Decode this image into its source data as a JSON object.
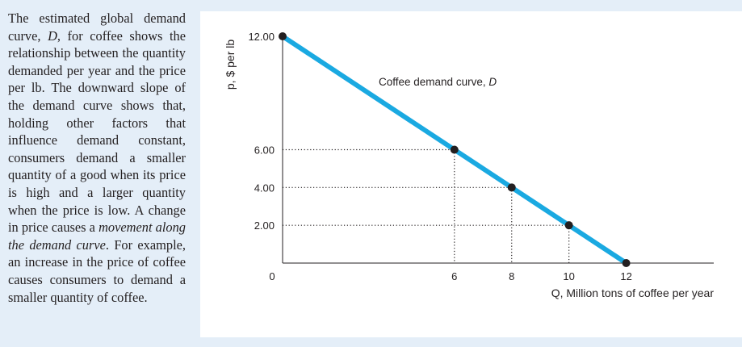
{
  "caption": {
    "part1": "The estimated global demand curve, ",
    "d_symbol": "D",
    "part2": ", for coffee shows the relationship between the quantity demanded per year and the price per lb. The downward slope of the demand curve shows that, holding other factors that influence demand constant, consumers demand a smaller quantity of a good when its price is high and a larger quantity when the price is low. A change in price causes a ",
    "emphasis": "movement along the demand curve",
    "part3": ". For example, an increase in the price of coffee causes consumers to demand a smaller quantity of coffee."
  },
  "chart_data": {
    "type": "line",
    "series": [
      {
        "name": "",
        "x": [
          0,
          12
        ],
        "y": [
          12,
          0
        ]
      }
    ],
    "points": [
      {
        "x": 0,
        "y": 12
      },
      {
        "x": 6,
        "y": 6
      },
      {
        "x": 8,
        "y": 4
      },
      {
        "x": 10,
        "y": 2
      },
      {
        "x": 12,
        "y": 0
      }
    ],
    "xlabel": "Q, Million tons of coffee per year",
    "ylabel": "p, $ per lb",
    "xlim": [
      0,
      15
    ],
    "ylim": [
      0,
      12
    ],
    "x_ticks": [
      6,
      8,
      10,
      12
    ],
    "y_ticks": [
      2,
      4,
      6,
      12
    ],
    "x_tick_labels": [
      "6",
      "8",
      "10",
      "12"
    ],
    "y_tick_labels": [
      "2.00",
      "4.00",
      "6.00",
      "12.00"
    ],
    "origin_label": "0",
    "annotation": {
      "text": "Coffee demand curve, ",
      "symbol": "D"
    },
    "line_color": "#1aa9e1",
    "point_color": "#231f20",
    "guide_style": "dotted",
    "grid": false
  }
}
